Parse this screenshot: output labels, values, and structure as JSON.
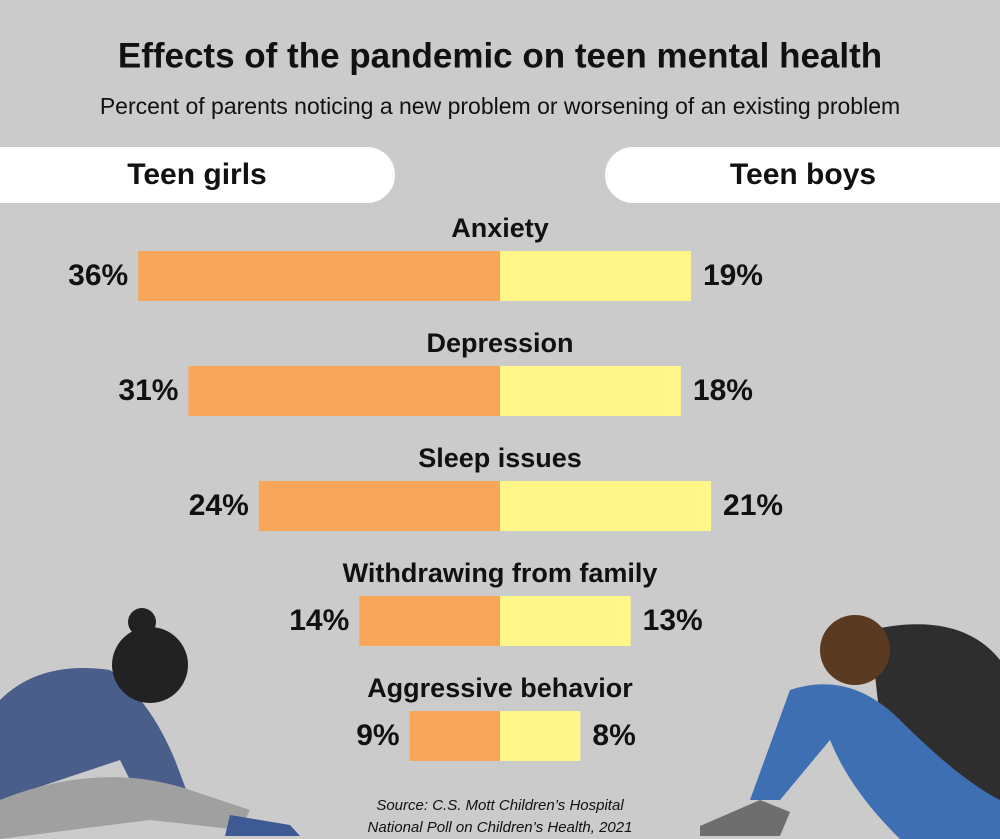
{
  "chart_data": {
    "type": "butterfly",
    "title": "Effects of the pandemic on teen mental health",
    "subtitle": "Percent of parents noticing a new problem or worsening of an existing problem",
    "categories": [
      "Anxiety",
      "Depression",
      "Sleep issues",
      "Withdrawing from family",
      "Aggressive behavior"
    ],
    "series": [
      {
        "name": "Teen girls",
        "color": "#f7a65a",
        "values": [
          36,
          31,
          24,
          14,
          9
        ],
        "value_labels": [
          "36%",
          "31%",
          "24%",
          "14%",
          "9%"
        ]
      },
      {
        "name": "Teen boys",
        "color": "#fff68a",
        "values": [
          19,
          18,
          21,
          13,
          8
        ],
        "value_labels": [
          "19%",
          "18%",
          "21%",
          "13%",
          "8%"
        ]
      }
    ],
    "source": [
      "Source: C.S. Mott Children’s Hospital",
      "National Poll on Children’s Health, 2021"
    ]
  }
}
